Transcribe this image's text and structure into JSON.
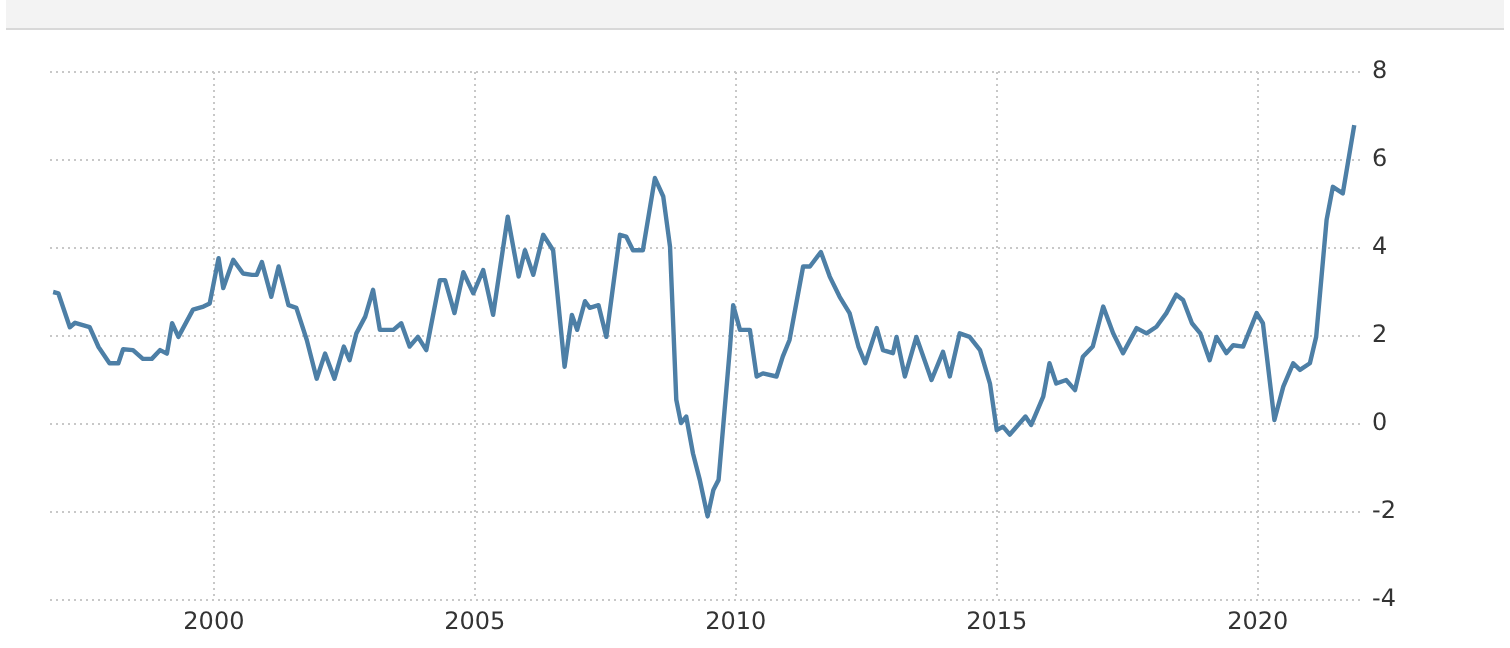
{
  "chart_data": {
    "type": "line",
    "x": [
      1996.92,
      1997.02,
      1997.24,
      1997.34,
      1997.62,
      1997.79,
      1998.0,
      1998.17,
      1998.26,
      1998.45,
      1998.64,
      1998.81,
      1998.97,
      1999.1,
      1999.2,
      1999.32,
      1999.6,
      1999.8,
      1999.92,
      2000.09,
      2000.18,
      2000.37,
      2000.56,
      2000.73,
      2000.82,
      2000.92,
      2001.1,
      2001.24,
      2001.43,
      2001.58,
      2001.78,
      2001.97,
      2002.13,
      2002.31,
      2002.49,
      2002.6,
      2002.73,
      2002.9,
      2003.05,
      2003.18,
      2003.44,
      2003.59,
      2003.75,
      2003.91,
      2004.07,
      2004.33,
      2004.43,
      2004.61,
      2004.78,
      2004.97,
      2005.16,
      2005.35,
      2005.63,
      2005.84,
      2005.96,
      2006.12,
      2006.31,
      2006.5,
      2006.72,
      2006.86,
      2006.96,
      2007.11,
      2007.2,
      2007.37,
      2007.52,
      2007.78,
      2007.9,
      2008.03,
      2008.22,
      2008.45,
      2008.61,
      2008.74,
      2008.86,
      2008.95,
      2009.05,
      2009.18,
      2009.31,
      2009.46,
      2009.57,
      2009.67,
      2009.89,
      2009.95,
      2010.08,
      2010.27,
      2010.4,
      2010.52,
      2010.78,
      2010.9,
      2011.03,
      2011.29,
      2011.42,
      2011.63,
      2011.8,
      2011.99,
      2012.18,
      2012.35,
      2012.48,
      2012.7,
      2012.82,
      2013.01,
      2013.08,
      2013.24,
      2013.46,
      2013.75,
      2013.97,
      2014.1,
      2014.29,
      2014.48,
      2014.68,
      2014.87,
      2015.0,
      2015.12,
      2015.25,
      2015.55,
      2015.66,
      2015.89,
      2016.01,
      2016.14,
      2016.33,
      2016.5,
      2016.65,
      2016.84,
      2017.04,
      2017.23,
      2017.42,
      2017.68,
      2017.87,
      2018.06,
      2018.25,
      2018.44,
      2018.57,
      2018.74,
      2018.9,
      2019.08,
      2019.21,
      2019.4,
      2019.53,
      2019.72,
      2019.98,
      2020.1,
      2020.32,
      2020.49,
      2020.68,
      2020.81,
      2021.0,
      2021.12,
      2021.32,
      2021.44,
      2021.63,
      2021.85
    ],
    "series": [
      {
        "color": "#4d7fa6",
        "values": [
          3.0,
          2.97,
          2.2,
          2.3,
          2.2,
          1.75,
          1.38,
          1.38,
          1.7,
          1.68,
          1.48,
          1.48,
          1.68,
          1.6,
          2.29,
          1.98,
          2.6,
          2.67,
          2.74,
          3.77,
          3.09,
          3.73,
          3.42,
          3.39,
          3.39,
          3.68,
          2.89,
          3.58,
          2.7,
          2.64,
          1.91,
          1.03,
          1.6,
          1.03,
          1.76,
          1.45,
          2.06,
          2.44,
          3.05,
          2.14,
          2.14,
          2.29,
          1.76,
          1.98,
          1.68,
          3.27,
          3.27,
          2.52,
          3.45,
          2.97,
          3.5,
          2.48,
          4.71,
          3.35,
          3.95,
          3.39,
          4.3,
          3.95,
          1.3,
          2.48,
          2.14,
          2.79,
          2.64,
          2.7,
          1.98,
          4.3,
          4.26,
          3.95,
          3.95,
          5.59,
          5.17,
          4.03,
          0.55,
          0.02,
          0.17,
          -0.67,
          -1.27,
          -2.1,
          -1.5,
          -1.27,
          1.76,
          2.7,
          2.14,
          2.14,
          1.08,
          1.15,
          1.08,
          1.53,
          1.91,
          3.58,
          3.58,
          3.91,
          3.35,
          2.89,
          2.52,
          1.76,
          1.38,
          2.18,
          1.68,
          1.61,
          1.98,
          1.08,
          1.98,
          1.0,
          1.64,
          1.08,
          2.06,
          1.98,
          1.68,
          0.92,
          -0.14,
          -0.06,
          -0.24,
          0.17,
          -0.02,
          0.62,
          1.38,
          0.92,
          1.0,
          0.77,
          1.53,
          1.76,
          2.67,
          2.06,
          1.61,
          2.18,
          2.06,
          2.21,
          2.52,
          2.94,
          2.82,
          2.29,
          2.06,
          1.45,
          1.98,
          1.61,
          1.79,
          1.76,
          2.52,
          2.29,
          0.09,
          0.85,
          1.38,
          1.23,
          1.38,
          1.98,
          4.64,
          5.39,
          5.24,
          6.79
        ]
      }
    ],
    "xlim": [
      1996.86,
      2021.96
    ],
    "xticks": [
      2000,
      2005,
      2010,
      2015,
      2020
    ],
    "ylim": [
      -4,
      8
    ],
    "yticks": [
      -4,
      -2,
      0,
      2,
      4,
      6,
      8
    ],
    "grid": true,
    "marker": "none",
    "line_style": "solid",
    "legend": false
  }
}
